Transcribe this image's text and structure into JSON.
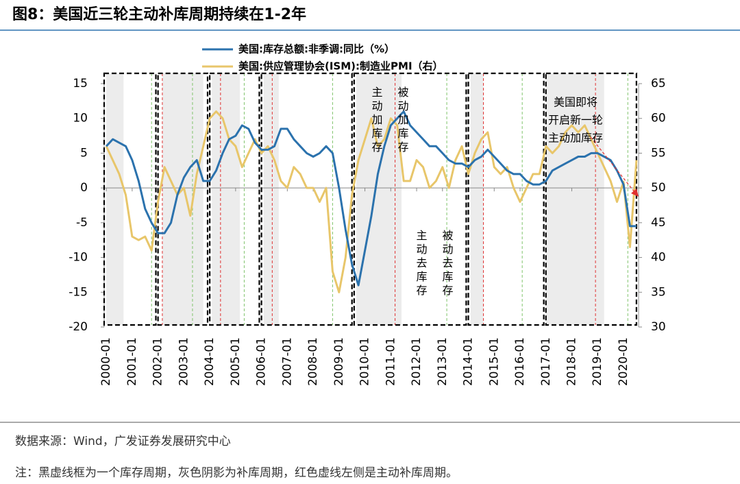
{
  "chart_data": {
    "type": "line",
    "title": "图8：美国近三轮主动补库周期持续在1-2年",
    "source": "数据来源：Wind，广发证券发展研究中心",
    "note": "注：黑虚线框为一个库存周期，灰色阴影为补库周期，红色虚线左侧是主动补库周期。",
    "x": [
      "2000-01",
      "2000-04",
      "2000-07",
      "2000-10",
      "2001-01",
      "2001-04",
      "2001-07",
      "2001-10",
      "2002-01",
      "2002-04",
      "2002-07",
      "2002-10",
      "2003-01",
      "2003-04",
      "2003-07",
      "2003-10",
      "2004-01",
      "2004-04",
      "2004-07",
      "2004-10",
      "2005-01",
      "2005-04",
      "2005-07",
      "2005-10",
      "2006-01",
      "2006-04",
      "2006-07",
      "2006-10",
      "2007-01",
      "2007-04",
      "2007-07",
      "2007-10",
      "2008-01",
      "2008-04",
      "2008-07",
      "2008-10",
      "2009-01",
      "2009-04",
      "2009-07",
      "2009-10",
      "2010-01",
      "2010-04",
      "2010-07",
      "2010-10",
      "2011-01",
      "2011-04",
      "2011-07",
      "2011-10",
      "2012-01",
      "2012-04",
      "2012-07",
      "2012-10",
      "2013-01",
      "2013-04",
      "2013-07",
      "2013-10",
      "2014-01",
      "2014-04",
      "2014-07",
      "2014-10",
      "2015-01",
      "2015-04",
      "2015-07",
      "2015-10",
      "2016-01",
      "2016-04",
      "2016-07",
      "2016-10",
      "2017-01",
      "2017-04",
      "2017-07",
      "2017-10",
      "2018-01",
      "2018-04",
      "2018-07",
      "2018-10",
      "2019-01",
      "2019-04",
      "2019-07",
      "2019-10",
      "2020-01",
      "2020-04",
      "2020-07"
    ],
    "series": [
      {
        "name": "美国:库存总额:非季调:同比（%）",
        "color": "#2b72ad",
        "values": [
          6,
          7,
          6.5,
          6,
          4,
          1,
          -3,
          -5,
          -6.5,
          -6.5,
          -5,
          -1,
          1.5,
          3,
          4,
          1,
          1,
          2.5,
          5,
          7,
          7.5,
          9,
          8.5,
          6.5,
          5.5,
          5.5,
          6,
          8.5,
          8.5,
          7,
          6,
          5,
          4.5,
          5,
          6,
          5,
          0,
          -6,
          -11,
          -14,
          -9,
          -4,
          2,
          6,
          9,
          10,
          11,
          9,
          8,
          7,
          6,
          6,
          5,
          4,
          3.5,
          3.5,
          3,
          4,
          4.5,
          5.5,
          4.5,
          3.5,
          2.5,
          2,
          2,
          1,
          0.5,
          0.5,
          1,
          2.5,
          3,
          3.5,
          4,
          4.5,
          4.5,
          5,
          5,
          4.5,
          4,
          2.5,
          0.5,
          -5.5,
          -5.5
        ]
      },
      {
        "name": "美国:供应管理协会(ISM):制造业PMI（右）",
        "color": "#e8c66a",
        "axis": "y2",
        "values": [
          56,
          54,
          52,
          49,
          43,
          42.5,
          43,
          41,
          48,
          53,
          51,
          49,
          50,
          46,
          52,
          56,
          60,
          61,
          60,
          57,
          56,
          53,
          55,
          57,
          55,
          56,
          54,
          51,
          50,
          53,
          52,
          50,
          50,
          48,
          50,
          38,
          35,
          40,
          49,
          54,
          57,
          60,
          56,
          57,
          60,
          59,
          51,
          51,
          54,
          53,
          50,
          51,
          53,
          50,
          54,
          56,
          52,
          55,
          57,
          58,
          53,
          52,
          53,
          50,
          48,
          50,
          52,
          52,
          56,
          55,
          56,
          58,
          59,
          58,
          59,
          57,
          55,
          53,
          51,
          48,
          50.9,
          41.5,
          54
        ]
      }
    ],
    "xlim": [
      "1999-12",
      "2020-08"
    ],
    "xticks": [
      "2000-01",
      "2001-01",
      "2002-01",
      "2003-01",
      "2004-01",
      "2005-01",
      "2006-01",
      "2007-01",
      "2008-01",
      "2009-01",
      "2010-01",
      "2011-01",
      "2012-01",
      "2013-01",
      "2014-01",
      "2015-01",
      "2016-01",
      "2017-01",
      "2018-01",
      "2019-01",
      "2020-01"
    ],
    "ylim": [
      -20,
      15
    ],
    "yticks": [
      -20,
      -15,
      -10,
      -5,
      0,
      5,
      10,
      15
    ],
    "y2lim": [
      30,
      65
    ],
    "y2ticks": [
      30,
      35,
      40,
      45,
      50,
      55,
      60,
      65
    ],
    "cycles": [
      {
        "start": "1999-12",
        "end": "2001-12"
      },
      {
        "start": "2002-01",
        "end": "2003-12"
      },
      {
        "start": "2004-01",
        "end": "2005-12"
      },
      {
        "start": "2006-01",
        "end": "2009-07"
      },
      {
        "start": "2009-08",
        "end": "2013-12"
      },
      {
        "start": "2014-01",
        "end": "2016-12"
      },
      {
        "start": "2017-01",
        "end": "2020-07"
      }
    ],
    "shading": [
      {
        "start": "2000-01",
        "end": "2000-09"
      },
      {
        "start": "2002-03",
        "end": "2003-10"
      },
      {
        "start": "2004-02",
        "end": "2005-03"
      },
      {
        "start": "2006-02",
        "end": "2006-09"
      },
      {
        "start": "2009-09",
        "end": "2011-06"
      },
      {
        "start": "2014-02",
        "end": "2014-08"
      },
      {
        "start": "2017-01",
        "end": "2019-04"
      }
    ],
    "red_lines": [
      "2002-03",
      "2004-06",
      "2006-06",
      "2011-03",
      "2014-08",
      "2018-12"
    ],
    "green_lines": [
      "2001-10",
      "2003-05",
      "2005-05",
      "2008-10",
      "2013-03",
      "2016-02",
      "2020-03"
    ],
    "annotations": [
      "主动加库存",
      "被动加库存",
      "主动去库存",
      "被动去库存",
      "美国即将",
      "开启新一轮",
      "主动加库存"
    ]
  }
}
